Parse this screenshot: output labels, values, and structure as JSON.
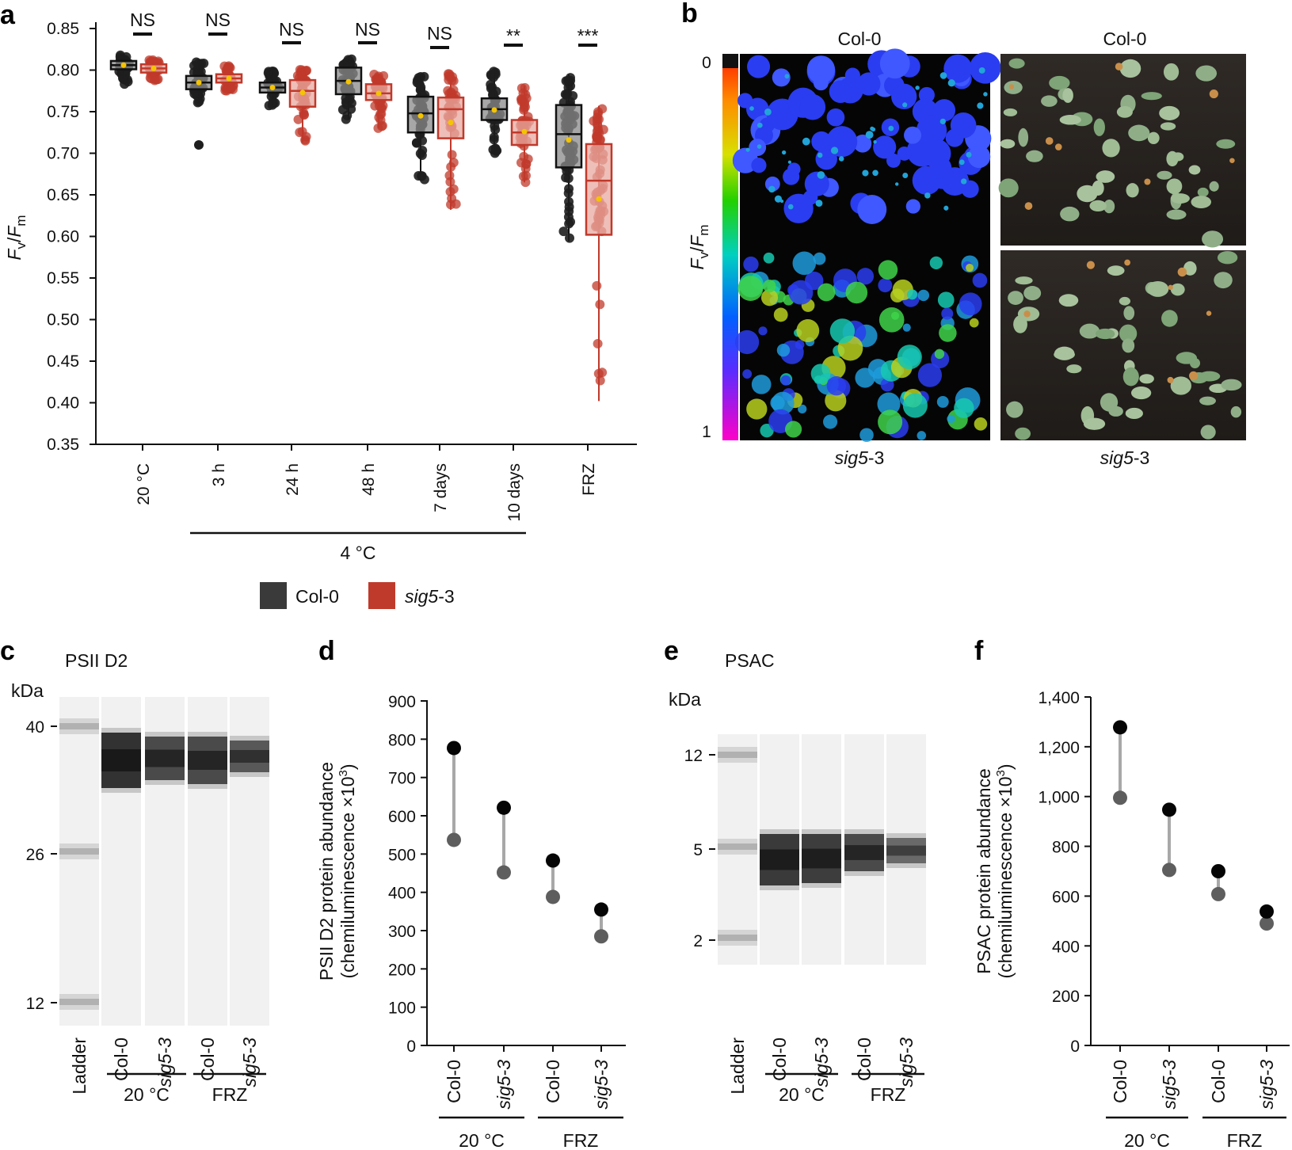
{
  "colors": {
    "col0": "#1e1e1e",
    "sig5": "#c0392b",
    "col0_fill": "#8a8a8a",
    "sig5_fill": "#e8a9a0",
    "mean_dot": "#f5c400"
  },
  "panels": {
    "a": "a",
    "b": "b",
    "c": "c",
    "d": "d",
    "e": "e",
    "f": "f"
  },
  "legend": {
    "col0": "Col-0",
    "sig5_prefix": "sig5",
    "sig5_suffix": "-3"
  },
  "group_4c": "4 °C",
  "chart_data": [
    {
      "id": "a",
      "type": "box",
      "ylabel": "Fv/Fm",
      "ylabel_parts": {
        "F1": "F",
        "s1": "v",
        "slash": "/",
        "F2": "F",
        "s2": "m"
      },
      "ylim": [
        0.35,
        0.85
      ],
      "yticks": [
        "0.85",
        "0.80",
        "0.75",
        "0.70",
        "0.65",
        "0.60",
        "0.55",
        "0.50",
        "0.45",
        "0.40",
        "0.35"
      ],
      "categories": [
        "20 °C",
        "3 h",
        "24 h",
        "48 h",
        "7 days",
        "10 days",
        "FRZ"
      ],
      "significance": [
        "NS",
        "NS",
        "NS",
        "NS",
        "NS",
        "**",
        "***"
      ],
      "series": [
        {
          "name": "Col-0",
          "boxes": [
            {
              "q1": 0.801,
              "median": 0.806,
              "q3": 0.811,
              "mean": 0.806,
              "whisker_low": 0.783,
              "whisker_high": 0.818
            },
            {
              "q1": 0.777,
              "median": 0.785,
              "q3": 0.793,
              "mean": 0.785,
              "whisker_low": 0.76,
              "whisker_high": 0.812,
              "outliers": [
                0.71
              ]
            },
            {
              "q1": 0.773,
              "median": 0.779,
              "q3": 0.785,
              "mean": 0.779,
              "whisker_low": 0.757,
              "whisker_high": 0.8
            },
            {
              "q1": 0.771,
              "median": 0.787,
              "q3": 0.803,
              "mean": 0.786,
              "whisker_low": 0.74,
              "whisker_high": 0.815
            },
            {
              "q1": 0.725,
              "median": 0.748,
              "q3": 0.768,
              "mean": 0.745,
              "whisker_low": 0.668,
              "whisker_high": 0.793
            },
            {
              "q1": 0.74,
              "median": 0.753,
              "q3": 0.766,
              "mean": 0.752,
              "whisker_low": 0.7,
              "whisker_high": 0.8
            },
            {
              "q1": 0.683,
              "median": 0.723,
              "q3": 0.758,
              "mean": 0.716,
              "whisker_low": 0.594,
              "whisker_high": 0.795
            }
          ]
        },
        {
          "name": "sig5-3",
          "boxes": [
            {
              "q1": 0.797,
              "median": 0.802,
              "q3": 0.807,
              "mean": 0.802,
              "whisker_low": 0.786,
              "whisker_high": 0.813
            },
            {
              "q1": 0.785,
              "median": 0.79,
              "q3": 0.795,
              "mean": 0.79,
              "whisker_low": 0.775,
              "whisker_high": 0.805
            },
            {
              "q1": 0.756,
              "median": 0.775,
              "q3": 0.788,
              "mean": 0.773,
              "whisker_low": 0.713,
              "whisker_high": 0.803
            },
            {
              "q1": 0.764,
              "median": 0.772,
              "q3": 0.783,
              "mean": 0.772,
              "whisker_low": 0.73,
              "whisker_high": 0.795
            },
            {
              "q1": 0.718,
              "median": 0.753,
              "q3": 0.767,
              "mean": 0.737,
              "whisker_low": 0.632,
              "whisker_high": 0.798
            },
            {
              "q1": 0.71,
              "median": 0.725,
              "q3": 0.74,
              "mean": 0.726,
              "whisker_low": 0.665,
              "whisker_high": 0.781
            },
            {
              "q1": 0.602,
              "median": 0.667,
              "q3": 0.711,
              "mean": 0.645,
              "whisker_low": 0.402,
              "whisker_high": 0.757
            }
          ]
        }
      ]
    },
    {
      "id": "b",
      "type": "image-panel",
      "ylabel_parts": {
        "F1": "F",
        "s1": "v",
        "slash": "/",
        "F2": "F",
        "s2": "m"
      },
      "colorbar_ticks": [
        "0",
        "1"
      ],
      "top_labels": [
        "Col-0",
        "Col-0"
      ],
      "bottom_labels_italic": [
        "sig5",
        "sig5"
      ],
      "bottom_labels_suffix": [
        "-3",
        "-3"
      ]
    },
    {
      "id": "c",
      "type": "blot",
      "title": "PSII D2",
      "unit_label": "kDa",
      "ladder_ticks": [
        "40",
        "26",
        "12"
      ],
      "lanes": [
        "Ladder",
        "Col-0",
        "sig5-3",
        "Col-0",
        "sig5-3"
      ],
      "groups": [
        "20 °C",
        "FRZ"
      ]
    },
    {
      "id": "d",
      "type": "dumbbell",
      "ylabel_line1": "PSII D2 protein abundance",
      "ylabel_line2": "(chemiluminescence ×10",
      "ylabel_sup": "3",
      "ylabel_close": ")",
      "ylim": [
        0,
        900
      ],
      "yticks": [
        "0",
        "100",
        "200",
        "300",
        "400",
        "500",
        "600",
        "700",
        "800",
        "900"
      ],
      "categories": [
        "Col-0",
        "sig5-3",
        "Col-0",
        "sig5-3"
      ],
      "groups": [
        "20 °C",
        "FRZ"
      ],
      "high": [
        777,
        621,
        483,
        355
      ],
      "low": [
        537,
        452,
        388,
        285
      ]
    },
    {
      "id": "e",
      "type": "blot",
      "title": "PSAC",
      "unit_label": "kDa",
      "ladder_ticks": [
        "12",
        "5",
        "2"
      ],
      "lanes": [
        "Ladder",
        "Col-0",
        "sig5-3",
        "Col-0",
        "sig5-3"
      ],
      "groups": [
        "20 °C",
        "FRZ"
      ]
    },
    {
      "id": "f",
      "type": "dumbbell",
      "ylabel_line1": "PSAC protein abundance",
      "ylabel_line2": "(chemiluminescence ×10",
      "ylabel_sup": "3",
      "ylabel_close": ")",
      "ylim": [
        0,
        1400
      ],
      "yticks": [
        "0",
        "200",
        "400",
        "600",
        "800",
        "1,000",
        "1,200",
        "1,400"
      ],
      "categories": [
        "Col-0",
        "sig5-3",
        "Col-0",
        "sig5-3"
      ],
      "groups": [
        "20 °C",
        "FRZ"
      ],
      "high": [
        1278,
        947,
        700,
        538
      ],
      "low": [
        995,
        705,
        608,
        490
      ]
    }
  ]
}
